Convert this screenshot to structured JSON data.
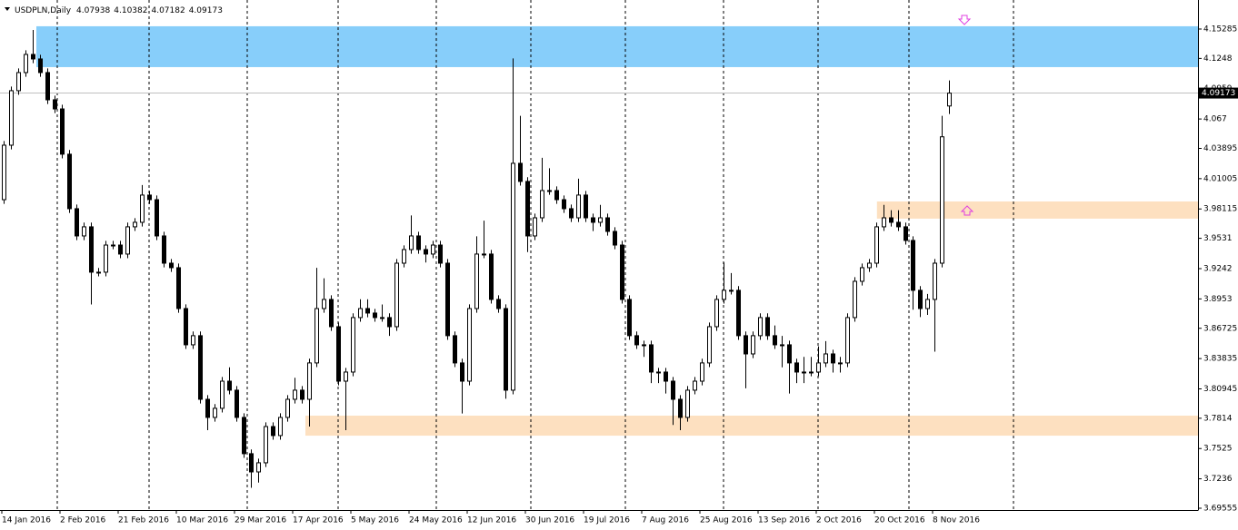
{
  "chart_data": {
    "type": "candlestick",
    "symbol": "USDPLN,Daily",
    "last_bar": {
      "open": 4.07938,
      "high": 4.10382,
      "low": 4.07182,
      "close": 4.09173
    },
    "current_price": 4.09173,
    "xlim": [
      -0.5,
      164.25
    ],
    "ylim": [
      3.69382,
      4.18055
    ],
    "xticks": [
      {
        "value": 0,
        "label": "14 Jan 2016"
      },
      {
        "value": 8,
        "label": "2 Feb 2016"
      },
      {
        "value": 16,
        "label": "21 Feb 2016"
      },
      {
        "value": 24,
        "label": "10 Mar 2016"
      },
      {
        "value": 32,
        "label": "29 Mar 2016"
      },
      {
        "value": 40,
        "label": "17 Apr 2016"
      },
      {
        "value": 48,
        "label": "5 May 2016"
      },
      {
        "value": 56,
        "label": "24 May 2016"
      },
      {
        "value": 64,
        "label": "12 Jun 2016"
      },
      {
        "value": 72,
        "label": "30 Jun 2016"
      },
      {
        "value": 80,
        "label": "19 Jul 2016"
      },
      {
        "value": 88,
        "label": "7 Aug 2016"
      },
      {
        "value": 96,
        "label": "25 Aug 2016"
      },
      {
        "value": 104,
        "label": "13 Sep 2016"
      },
      {
        "value": 112,
        "label": "2 Oct 2016"
      },
      {
        "value": 120,
        "label": "20 Oct 2016"
      },
      {
        "value": 128,
        "label": "8 Nov 2016"
      }
    ],
    "yticks": [
      4.15285,
      4.1248,
      4.0959,
      4.067,
      4.03895,
      4.01005,
      3.98115,
      3.9531,
      3.9242,
      3.8953,
      3.86725,
      3.83835,
      3.80945,
      3.7814,
      3.7525,
      3.7236,
      3.69555
    ],
    "zones": [
      {
        "from": 4.5,
        "top": 4.1555,
        "bottom": 4.1165,
        "color": "#87cefa"
      },
      {
        "from": 120.1,
        "top": 3.9883,
        "bottom": 3.9719,
        "color": "#fde0c0"
      },
      {
        "from": 41.5,
        "top": 3.7839,
        "bottom": 3.7648,
        "color": "#fde0c0"
      }
    ],
    "open": [
      3.99,
      4.042,
      4.094,
      4.1113,
      4.1286,
      4.1243,
      4.1113,
      4.0853,
      4.0766,
      4.0334,
      3.9814,
      3.9554,
      3.9641,
      3.9208,
      3.9208,
      3.9467,
      3.9467,
      3.9381,
      3.9641,
      3.9684,
      3.9944,
      3.99,
      3.9554,
      3.9294,
      3.9251,
      3.8861,
      3.8515,
      3.8602,
      3.7995,
      3.7822,
      3.7909,
      3.8168,
      3.8082,
      3.7822,
      3.7476,
      3.7302,
      3.7389,
      3.7735,
      3.7649,
      3.7822,
      3.7995,
      3.8082,
      3.7995,
      3.8342,
      3.8861,
      3.8948,
      3.8688,
      3.8168,
      3.8255,
      3.8775,
      3.8861,
      3.8818,
      3.8775,
      3.8775,
      3.8688,
      3.9294,
      3.9424,
      3.9554,
      3.9424,
      3.9381,
      3.9467,
      3.9294,
      3.8602,
      3.8342,
      3.8168,
      3.8861,
      3.9381,
      3.9381,
      3.8948,
      3.8861,
      3.8082,
      4.0247,
      4.0074,
      3.9554,
      3.9727,
      3.9987,
      3.9987,
      3.99,
      3.9814,
      3.9727,
      3.9944,
      3.9727,
      3.9684,
      3.9727,
      3.9597,
      3.9467,
      3.8948,
      3.8602,
      3.8515,
      3.8515,
      3.8255,
      3.8255,
      3.8168,
      3.7995,
      3.7822,
      3.8082,
      3.8168,
      3.8342,
      3.8688,
      3.8948,
      3.9035,
      3.9035,
      3.8602,
      3.8428,
      3.8602,
      3.8775,
      3.8602,
      3.8515,
      3.8515,
      3.8342,
      3.8255,
      3.8255,
      3.8255,
      3.8342,
      3.8428,
      3.8342,
      3.8342,
      3.8775,
      3.9121,
      3.9251,
      3.9294,
      3.9641,
      3.9727,
      3.9684,
      3.9641,
      3.9511,
      3.9035,
      3.8861,
      3.8948,
      3.9294,
      4.0794
    ],
    "high": [
      4.046,
      4.098,
      4.1153,
      4.1326,
      4.152,
      4.1283,
      4.1153,
      4.0893,
      4.0806,
      4.0374,
      3.9854,
      3.9681,
      3.9681,
      3.9248,
      3.9507,
      3.9507,
      3.9507,
      3.9681,
      3.9724,
      4.004,
      3.9984,
      3.994,
      3.9594,
      3.9334,
      3.9291,
      3.8901,
      3.8642,
      3.8642,
      3.8035,
      3.7949,
      3.8208,
      3.83,
      3.8122,
      3.7862,
      3.7516,
      3.7429,
      3.7775,
      3.7775,
      3.7862,
      3.8035,
      3.82,
      3.8122,
      3.8382,
      3.925,
      3.915,
      3.8988,
      3.8728,
      3.8295,
      3.8815,
      3.895,
      3.895,
      3.8858,
      3.89,
      3.8815,
      3.9334,
      3.9464,
      3.975,
      3.9594,
      3.9464,
      3.9507,
      3.9507,
      3.9334,
      3.8642,
      3.8382,
      3.8901,
      3.955,
      3.97,
      3.9421,
      3.8988,
      3.8901,
      4.1248,
      4.07,
      4.0114,
      3.9767,
      4.03,
      4.02,
      4.0027,
      3.994,
      3.9854,
      4.01,
      3.9984,
      3.9767,
      3.985,
      3.9767,
      3.9637,
      3.9507,
      3.8988,
      3.8642,
      3.8555,
      3.8555,
      3.8295,
      3.8295,
      3.8208,
      3.8035,
      3.8122,
      3.8208,
      3.8382,
      3.8728,
      3.8988,
      3.93,
      3.92,
      3.9075,
      3.8642,
      3.8642,
      3.8815,
      3.8815,
      3.87,
      3.86,
      3.8555,
      3.8382,
      3.84,
      3.84,
      3.85,
      3.855,
      3.8468,
      3.84,
      3.8815,
      3.9161,
      3.9291,
      3.9334,
      3.9681,
      3.985,
      3.98,
      3.98,
      3.9681,
      3.9551,
      3.9075,
      3.9,
      3.9334,
      4.07,
      4.1038
    ],
    "low": [
      3.986,
      4.038,
      4.09,
      4.1073,
      4.1203,
      4.1073,
      4.0813,
      4.0726,
      4.0294,
      3.9774,
      3.9514,
      3.9514,
      3.89,
      3.9168,
      3.9168,
      3.9427,
      3.9341,
      3.9341,
      3.9601,
      3.9644,
      3.986,
      3.9514,
      3.9254,
      3.9211,
      3.8821,
      3.8475,
      3.8475,
      3.7955,
      3.77,
      3.7782,
      3.7869,
      3.8042,
      3.7782,
      3.7436,
      3.715,
      3.72,
      3.7349,
      3.7609,
      3.7609,
      3.7782,
      3.7955,
      3.7955,
      3.7735,
      3.8302,
      3.8821,
      3.8648,
      3.8128,
      3.77,
      3.8215,
      3.8735,
      3.8778,
      3.8735,
      3.8735,
      3.86,
      3.8648,
      3.9254,
      3.9384,
      3.9384,
      3.93,
      3.9341,
      3.9254,
      3.8562,
      3.8302,
      3.786,
      3.8128,
      3.8821,
      3.9341,
      3.8908,
      3.8821,
      3.8,
      3.8042,
      4.0034,
      3.94,
      3.9514,
      3.9687,
      3.9947,
      3.986,
      3.9774,
      3.9687,
      3.9687,
      3.9687,
      3.96,
      3.9644,
      3.9557,
      3.9427,
      3.8908,
      3.8562,
      3.8475,
      3.84,
      3.815,
      3.815,
      3.805,
      3.775,
      3.77,
      3.7782,
      3.8042,
      3.8128,
      3.8302,
      3.8648,
      3.8908,
      3.8995,
      3.8562,
      3.81,
      3.8388,
      3.8562,
      3.8562,
      3.8475,
      3.83,
      3.805,
      3.815,
      3.815,
      3.8215,
      3.8215,
      3.8302,
      3.825,
      3.825,
      3.8302,
      3.8735,
      3.9081,
      3.9211,
      3.9254,
      3.9601,
      3.9644,
      3.9601,
      3.9471,
      3.885,
      3.878,
      3.88,
      3.845,
      3.9254,
      4.0718
    ],
    "close": [
      4.042,
      4.094,
      4.1113,
      4.1286,
      4.1243,
      4.1113,
      4.0853,
      4.0766,
      4.0334,
      3.9814,
      3.9554,
      3.9641,
      3.9208,
      3.9208,
      3.9467,
      3.9467,
      3.9381,
      3.9641,
      3.9684,
      3.9944,
      3.99,
      3.9554,
      3.9294,
      3.9251,
      3.8861,
      3.8515,
      3.8602,
      3.7995,
      3.7822,
      3.7909,
      3.8168,
      3.8082,
      3.7822,
      3.7476,
      3.7302,
      3.7389,
      3.7735,
      3.7649,
      3.7822,
      3.7995,
      3.8082,
      3.7995,
      3.8342,
      3.8861,
      3.8948,
      3.8688,
      3.8168,
      3.8255,
      3.8775,
      3.8861,
      3.8818,
      3.8775,
      3.8775,
      3.8688,
      3.9294,
      3.9424,
      3.9554,
      3.9424,
      3.9381,
      3.9467,
      3.9294,
      3.8602,
      3.8342,
      3.8168,
      3.8861,
      3.9381,
      3.9381,
      3.8948,
      3.8861,
      3.8082,
      4.0247,
      4.0074,
      3.9554,
      3.9727,
      3.9987,
      3.9987,
      3.99,
      3.9814,
      3.9727,
      3.9944,
      3.9727,
      3.9684,
      3.9727,
      3.9597,
      3.9467,
      3.8948,
      3.8602,
      3.8515,
      3.8515,
      3.8255,
      3.8255,
      3.8168,
      3.7995,
      3.7822,
      3.8082,
      3.8168,
      3.8342,
      3.8688,
      3.8948,
      3.9035,
      3.9035,
      3.8602,
      3.8428,
      3.8602,
      3.8775,
      3.8602,
      3.8515,
      3.8515,
      3.8342,
      3.8255,
      3.8255,
      3.8255,
      3.8342,
      3.8428,
      3.8342,
      3.8342,
      3.8775,
      3.9121,
      3.9251,
      3.9294,
      3.9641,
      3.9727,
      3.9684,
      3.9641,
      3.9511,
      3.9035,
      3.8861,
      3.8948,
      3.9294,
      4.05,
      4.0917
    ]
  }
}
